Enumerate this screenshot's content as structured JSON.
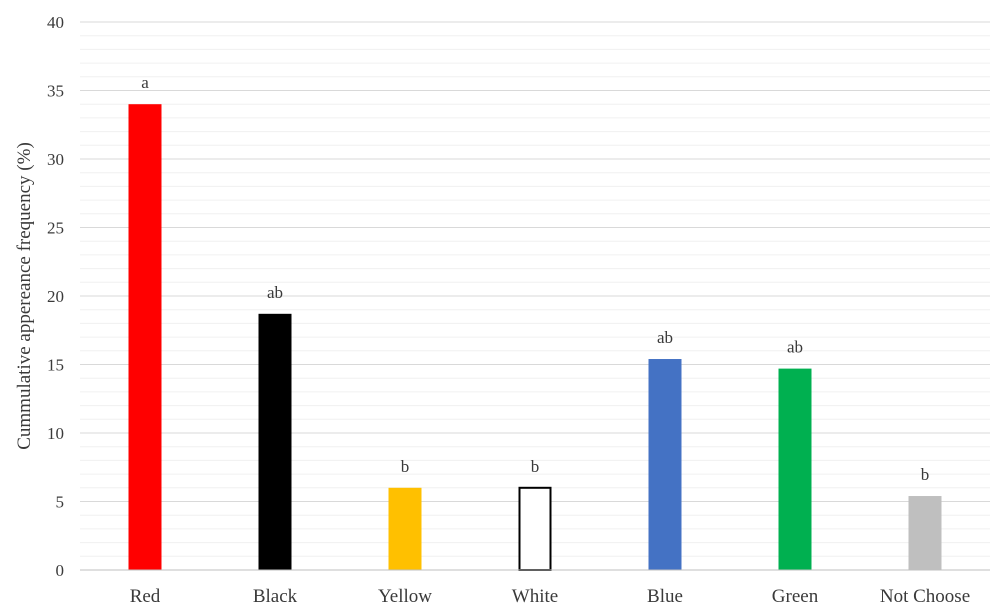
{
  "chart_data": {
    "type": "bar",
    "title": "",
    "xlabel": "",
    "ylabel": "Cummulative appereance frequency (%)",
    "ylim": [
      0,
      40
    ],
    "yticks": [
      0,
      5,
      10,
      15,
      20,
      25,
      30,
      35,
      40
    ],
    "minor_grid_step": 1,
    "grid": true,
    "legend": "none",
    "categories": [
      "Red",
      "Black",
      "Yellow",
      "White",
      "Blue",
      "Green",
      "Not Choose"
    ],
    "values": [
      34.0,
      18.7,
      6.0,
      6.0,
      15.4,
      14.7,
      5.4
    ],
    "labels": [
      "a",
      "ab",
      "b",
      "b",
      "ab",
      "ab",
      "b"
    ],
    "colors": [
      "#ff0000",
      "#000000",
      "#ffc000",
      "#ffffff",
      "#4472c4",
      "#00b050",
      "#bfbfbf"
    ],
    "outline_colors": [
      "#ff0000",
      "#000000",
      "#ffc000",
      "#000000",
      "#4472c4",
      "#00b050",
      "#bfbfbf"
    ]
  }
}
